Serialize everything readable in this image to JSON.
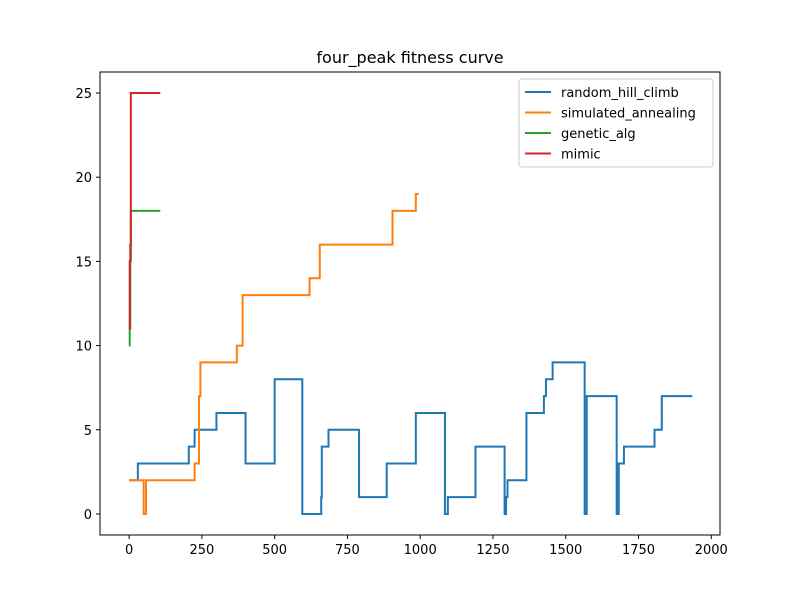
{
  "chart_data": {
    "type": "line",
    "title": "four_peak fitness curve",
    "xlabel": "",
    "ylabel": "",
    "xlim": [
      -100,
      2030
    ],
    "ylim": [
      -1.25,
      26.25
    ],
    "xticks": [
      0,
      250,
      500,
      750,
      1000,
      1250,
      1500,
      1750,
      2000
    ],
    "yticks": [
      0,
      5,
      10,
      15,
      20,
      25
    ],
    "grid": false,
    "legend_position": "top-right",
    "series": [
      {
        "name": "random_hill_climb",
        "color": "#1f77b4",
        "step": true,
        "points": [
          [
            0,
            2
          ],
          [
            30,
            2
          ],
          [
            30,
            3
          ],
          [
            205,
            3
          ],
          [
            205,
            4
          ],
          [
            225,
            4
          ],
          [
            225,
            5
          ],
          [
            300,
            5
          ],
          [
            300,
            6
          ],
          [
            400,
            6
          ],
          [
            400,
            3
          ],
          [
            500,
            3
          ],
          [
            500,
            8
          ],
          [
            595,
            8
          ],
          [
            595,
            0
          ],
          [
            660,
            0
          ],
          [
            660,
            1
          ],
          [
            662,
            1
          ],
          [
            662,
            4
          ],
          [
            685,
            4
          ],
          [
            685,
            5
          ],
          [
            790,
            5
          ],
          [
            790,
            1
          ],
          [
            885,
            1
          ],
          [
            885,
            3
          ],
          [
            985,
            3
          ],
          [
            985,
            6
          ],
          [
            1085,
            6
          ],
          [
            1085,
            0
          ],
          [
            1095,
            0
          ],
          [
            1095,
            1
          ],
          [
            1190,
            1
          ],
          [
            1190,
            4
          ],
          [
            1290,
            4
          ],
          [
            1290,
            0
          ],
          [
            1295,
            0
          ],
          [
            1295,
            1
          ],
          [
            1300,
            1
          ],
          [
            1300,
            2
          ],
          [
            1365,
            2
          ],
          [
            1365,
            6
          ],
          [
            1425,
            6
          ],
          [
            1425,
            7
          ],
          [
            1432,
            7
          ],
          [
            1432,
            8
          ],
          [
            1455,
            8
          ],
          [
            1455,
            9
          ],
          [
            1565,
            9
          ],
          [
            1565,
            0
          ],
          [
            1572,
            0
          ],
          [
            1572,
            7
          ],
          [
            1675,
            7
          ],
          [
            1675,
            0
          ],
          [
            1682,
            0
          ],
          [
            1682,
            3
          ],
          [
            1700,
            3
          ],
          [
            1700,
            4
          ],
          [
            1805,
            4
          ],
          [
            1805,
            5
          ],
          [
            1830,
            5
          ],
          [
            1830,
            7
          ],
          [
            1935,
            7
          ]
        ]
      },
      {
        "name": "simulated_annealing",
        "color": "#ff7f0e",
        "step": true,
        "points": [
          [
            0,
            2
          ],
          [
            50,
            2
          ],
          [
            50,
            0
          ],
          [
            58,
            0
          ],
          [
            58,
            2
          ],
          [
            225,
            2
          ],
          [
            225,
            3
          ],
          [
            240,
            3
          ],
          [
            240,
            7
          ],
          [
            245,
            7
          ],
          [
            245,
            9
          ],
          [
            370,
            9
          ],
          [
            370,
            10
          ],
          [
            390,
            10
          ],
          [
            390,
            13
          ],
          [
            620,
            13
          ],
          [
            620,
            14
          ],
          [
            655,
            14
          ],
          [
            655,
            16
          ],
          [
            905,
            16
          ],
          [
            905,
            18
          ],
          [
            985,
            18
          ],
          [
            985,
            19
          ],
          [
            995,
            19
          ]
        ]
      },
      {
        "name": "genetic_alg",
        "color": "#2ca02c",
        "step": true,
        "points": [
          [
            0,
            10
          ],
          [
            2,
            10
          ],
          [
            2,
            11
          ],
          [
            4,
            11
          ],
          [
            4,
            15
          ],
          [
            6,
            15
          ],
          [
            6,
            18
          ],
          [
            107,
            18
          ]
        ]
      },
      {
        "name": "mimic",
        "color": "#d62728",
        "step": true,
        "points": [
          [
            0,
            11
          ],
          [
            2,
            11
          ],
          [
            2,
            15
          ],
          [
            4,
            15
          ],
          [
            4,
            16
          ],
          [
            6,
            16
          ],
          [
            6,
            25
          ],
          [
            107,
            25
          ]
        ]
      }
    ]
  }
}
